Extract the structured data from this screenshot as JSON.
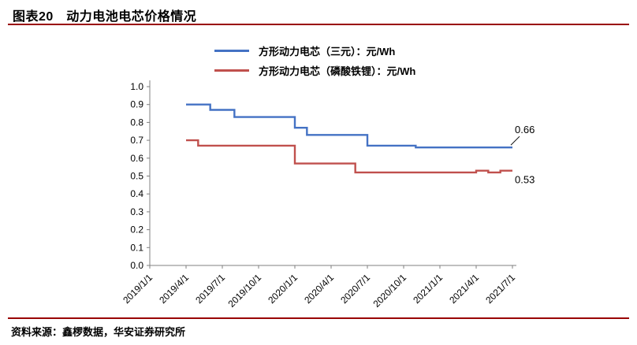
{
  "header": {
    "title": "图表20　动力电池电芯价格情况"
  },
  "footer": {
    "source": "资料来源：鑫椤数据，华安证券研究所"
  },
  "colors": {
    "ternary": "#4472c4",
    "lfp": "#c0504d",
    "rule": "#990000",
    "axis": "#808080",
    "text": "#000000"
  },
  "chart_data": {
    "type": "line",
    "title": "动力电池电芯价格情况",
    "xlabel": "",
    "ylabel": "",
    "ylim": [
      0.0,
      1.0
    ],
    "grid": false,
    "legend_position": "top",
    "y_tick_labels": [
      "0.0",
      "0.1",
      "0.2",
      "0.3",
      "0.4",
      "0.5",
      "0.6",
      "0.7",
      "0.8",
      "0.9",
      "1.0"
    ],
    "x_tick_labels": [
      "2019/1/1",
      "2019/4/1",
      "2019/7/1",
      "2019/10/1",
      "2020/1/1",
      "2020/4/1",
      "2020/7/1",
      "2020/10/1",
      "2021/1/1",
      "2021/4/1",
      "2021/7/1"
    ],
    "months_per_tick": 3,
    "x_range_months": 30,
    "data_start_month": 3,
    "x": [
      "2019/04",
      "2019/05",
      "2019/06",
      "2019/07",
      "2019/08",
      "2019/09",
      "2019/10",
      "2019/11",
      "2019/12",
      "2020/01",
      "2020/02",
      "2020/03",
      "2020/04",
      "2020/05",
      "2020/06",
      "2020/07",
      "2020/08",
      "2020/09",
      "2020/10",
      "2020/11",
      "2020/12",
      "2021/01",
      "2021/02",
      "2021/03",
      "2021/04",
      "2021/05",
      "2021/06",
      "2021/07"
    ],
    "series": [
      {
        "name": "方形动力电芯（三元）：元/Wh",
        "color_key": "ternary",
        "values": [
          0.9,
          0.9,
          0.87,
          0.87,
          0.83,
          0.83,
          0.83,
          0.83,
          0.83,
          0.77,
          0.73,
          0.73,
          0.73,
          0.73,
          0.73,
          0.67,
          0.67,
          0.67,
          0.67,
          0.66,
          0.66,
          0.66,
          0.66,
          0.66,
          0.66,
          0.66,
          0.66,
          0.66
        ]
      },
      {
        "name": "方形动力电芯（磷酸铁锂）：元/Wh",
        "color_key": "lfp",
        "values": [
          0.7,
          0.67,
          0.67,
          0.67,
          0.67,
          0.67,
          0.67,
          0.67,
          0.67,
          0.57,
          0.57,
          0.57,
          0.57,
          0.57,
          0.52,
          0.52,
          0.52,
          0.52,
          0.52,
          0.52,
          0.52,
          0.52,
          0.52,
          0.52,
          0.53,
          0.52,
          0.53,
          0.53
        ]
      }
    ],
    "annotations": [
      {
        "text": "0.66",
        "series": 0,
        "position": "above"
      },
      {
        "text": "0.53",
        "series": 1,
        "position": "below"
      }
    ]
  }
}
